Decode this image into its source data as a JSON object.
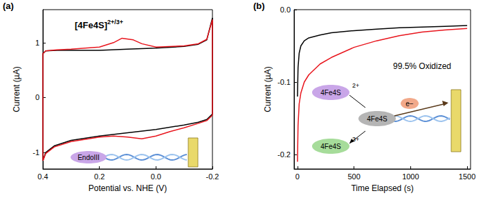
{
  "chart_data": [
    {
      "type": "line",
      "panel_label": "(a)",
      "annotation": {
        "text": "[4Fe4S]",
        "superscript": "2+/3+"
      },
      "inset_labels": [
        "EndoIII"
      ],
      "x_label": "Potential vs. NHE (V)",
      "y_label": "Current (µA)",
      "xlim": [
        0.4,
        -0.2
      ],
      "xticks": [
        0.4,
        0.2,
        {
          "value": 0,
          "label": "0.0"
        },
        -0.2
      ],
      "ylim": [
        -1.3,
        1.6
      ],
      "yticks": [
        -1,
        0,
        1
      ],
      "grid": false,
      "series": [
        {
          "color": "#000000",
          "x": [
            -0.2,
            -0.18,
            -0.15,
            -0.1,
            0.0,
            0.1,
            0.2,
            0.3,
            0.36,
            0.39,
            0.4,
            0.4,
            0.39,
            0.35,
            0.3,
            0.2,
            0.1,
            0.0,
            -0.1,
            -0.15,
            -0.18,
            -0.2,
            -0.2
          ],
          "values": [
            -0.3,
            -0.4,
            -0.45,
            -0.5,
            -0.58,
            -0.64,
            -0.7,
            -0.78,
            -0.88,
            -1.0,
            -1.15,
            0.8,
            0.85,
            0.86,
            0.86,
            0.86,
            0.88,
            0.9,
            0.93,
            0.97,
            1.05,
            1.45,
            -0.3
          ]
        },
        {
          "color": "#e8141c",
          "x": [
            -0.2,
            -0.18,
            -0.15,
            -0.1,
            -0.05,
            0.0,
            0.05,
            0.1,
            0.15,
            0.2,
            0.3,
            0.36,
            0.39,
            0.4,
            0.4,
            0.39,
            0.35,
            0.3,
            0.2,
            0.15,
            0.12,
            0.08,
            0.05,
            0.0,
            -0.1,
            -0.15,
            -0.18,
            -0.2,
            -0.2
          ],
          "values": [
            -0.32,
            -0.42,
            -0.47,
            -0.55,
            -0.62,
            -0.7,
            -0.75,
            -0.72,
            -0.7,
            -0.72,
            -0.8,
            -0.9,
            -1.02,
            -1.15,
            0.8,
            0.85,
            0.87,
            0.88,
            0.92,
            1.0,
            1.08,
            1.05,
            0.98,
            0.92,
            0.94,
            0.98,
            1.06,
            1.42,
            -0.32
          ]
        }
      ]
    },
    {
      "type": "line",
      "panel_label": "(b)",
      "annotation": {
        "text": "99.5% Oxidized"
      },
      "inset": {
        "nodes": [
          {
            "label": "4Fe4S",
            "charge": "2+"
          },
          {
            "label": "4Fe4S"
          },
          {
            "label": "4Fe4S",
            "charge": "3+"
          }
        ],
        "electron": "e−"
      },
      "x_label": "Time Elapsed (s)",
      "y_label": "Current (µA)",
      "xlim": [
        -30,
        1530
      ],
      "xticks": [
        0,
        500,
        1000,
        1500
      ],
      "ylim": [
        -0.22,
        0.0
      ],
      "yticks": [
        -0.2,
        -0.1,
        {
          "value": 0,
          "label": "0.0"
        }
      ],
      "grid": false,
      "series": [
        {
          "color": "#e8141c",
          "x": [
            0,
            5,
            15,
            30,
            60,
            100,
            200,
            300,
            500,
            700,
            900,
            1100,
            1300,
            1500
          ],
          "values": [
            -0.21,
            -0.16,
            -0.13,
            -0.115,
            -0.1,
            -0.09,
            -0.075,
            -0.066,
            -0.052,
            -0.043,
            -0.036,
            -0.031,
            -0.028,
            -0.026
          ]
        },
        {
          "color": "#000000",
          "x": [
            0,
            5,
            15,
            30,
            60,
            100,
            200,
            300,
            500,
            700,
            900,
            1100,
            1300,
            1500
          ],
          "values": [
            -0.12,
            -0.08,
            -0.06,
            -0.05,
            -0.043,
            -0.039,
            -0.035,
            -0.032,
            -0.029,
            -0.027,
            -0.025,
            -0.024,
            -0.023,
            -0.022
          ]
        }
      ]
    }
  ]
}
